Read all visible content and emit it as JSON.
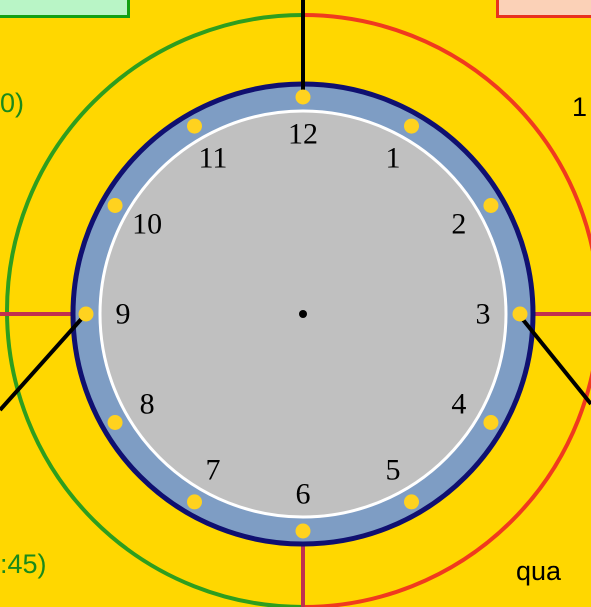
{
  "clock": {
    "numerals": [
      "12",
      "1",
      "2",
      "3",
      "4",
      "5",
      "6",
      "7",
      "8",
      "9",
      "10",
      "11"
    ]
  },
  "labels": {
    "top_left_fragment": "0)",
    "top_right_fragment": "1",
    "bottom_left_fragment": ":45)",
    "bottom_right_fragment": "qua"
  },
  "colors": {
    "background": "#ffd700",
    "left_ring": "#2e9e1e",
    "right_ring": "#f03a1e",
    "bezel": "#7e9dc4",
    "bezel_border": "#101070",
    "face": "#c0c0c0",
    "dots": "#ffd21f",
    "quarter_lines": "#c03050",
    "left_label_text": "#1a8a1a"
  }
}
